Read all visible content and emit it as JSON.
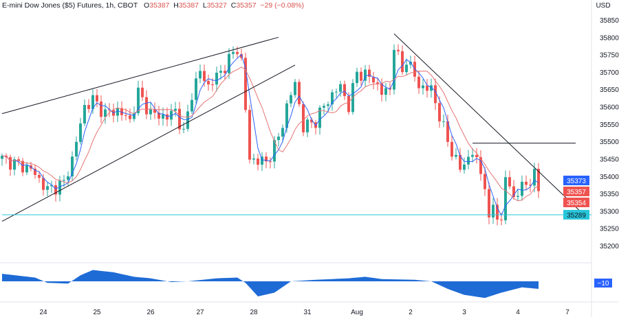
{
  "header": {
    "symbol": "E-mini Dow Jones ($5) Futures, 1h, CBOT",
    "o_label": "O",
    "o": "35387",
    "h_label": "H",
    "h": "35387",
    "l_label": "L",
    "l": "35327",
    "c_label": "C",
    "c": "35357",
    "change": "−29 (−0.08%)"
  },
  "currency": "USD",
  "colors": {
    "up": "#26a69a",
    "down": "#ef5350",
    "ma_fast": "#2962ff",
    "ma_slow": "#e57373",
    "support": "#26c6da",
    "osc": "#1e6bd6"
  },
  "chart_data": {
    "type": "candlestick",
    "title": "E-mini Dow Jones ($5) Futures, 1h, CBOT",
    "ylim": [
      35160,
      35900
    ],
    "y_ticks": [
      35200,
      35250,
      35300,
      35350,
      35400,
      35450,
      35500,
      35550,
      35600,
      35650,
      35700,
      35750,
      35800,
      35850
    ],
    "price_labels": [
      {
        "value": "35373",
        "color": "#2962ff"
      },
      {
        "value": "35357",
        "color": "#ef5350"
      },
      {
        "value": "35354",
        "color": "#ef5350"
      },
      {
        "value": "35289",
        "color": "#26c6da"
      }
    ],
    "x_labels": [
      "24",
      "25",
      "26",
      "27",
      "28",
      "31",
      "Aug",
      "2",
      "3",
      "4",
      "7"
    ],
    "x_label_bars": [
      10,
      23,
      36,
      48,
      61,
      74,
      86,
      99,
      112,
      125,
      137
    ],
    "waypoints": [
      [
        0,
        35450
      ],
      [
        7,
        35420
      ],
      [
        11,
        35360
      ],
      [
        15,
        35380
      ],
      [
        17,
        35450
      ],
      [
        20,
        35600
      ],
      [
        22,
        35620
      ],
      [
        25,
        35580
      ],
      [
        28,
        35590
      ],
      [
        31,
        35560
      ],
      [
        33,
        35640
      ],
      [
        36,
        35580
      ],
      [
        40,
        35570
      ],
      [
        42,
        35590
      ],
      [
        44,
        35520
      ],
      [
        46,
        35640
      ],
      [
        48,
        35700
      ],
      [
        50,
        35660
      ],
      [
        53,
        35700
      ],
      [
        57,
        35770
      ],
      [
        58,
        35730
      ],
      [
        60,
        35450
      ],
      [
        64,
        35440
      ],
      [
        67,
        35510
      ],
      [
        69,
        35600
      ],
      [
        71,
        35670
      ],
      [
        73,
        35540
      ],
      [
        76,
        35560
      ],
      [
        79,
        35620
      ],
      [
        82,
        35660
      ],
      [
        84,
        35600
      ],
      [
        86,
        35700
      ],
      [
        90,
        35680
      ],
      [
        92,
        35640
      ],
      [
        94,
        35650
      ],
      [
        95,
        35780
      ],
      [
        97,
        35700
      ],
      [
        98,
        35740
      ],
      [
        101,
        35660
      ],
      [
        104,
        35650
      ],
      [
        108,
        35500
      ],
      [
        111,
        35420
      ],
      [
        114,
        35470
      ],
      [
        117,
        35380
      ],
      [
        118,
        35260
      ],
      [
        119,
        35320
      ],
      [
        121,
        35260
      ],
      [
        122,
        35400
      ],
      [
        124,
        35340
      ],
      [
        127,
        35380
      ],
      [
        129,
        35400
      ],
      [
        130,
        35357
      ]
    ],
    "trendlines": [
      {
        "name": "upper-channel",
        "from": [
          0,
          35580
        ],
        "to": [
          67,
          35800
        ]
      },
      {
        "name": "lower-channel",
        "from": [
          0,
          35270
        ],
        "to": [
          71,
          35720
        ]
      },
      {
        "name": "descending",
        "from": [
          95,
          35810
        ],
        "to": [
          141,
          35289
        ]
      },
      {
        "name": "resistance",
        "from": [
          114,
          35495
        ],
        "to": [
          139,
          35495
        ]
      },
      {
        "name": "support",
        "from": [
          0,
          35289
        ],
        "to": [
          150,
          35289
        ]
      }
    ],
    "oscillator": {
      "label": "−10",
      "waypoints": [
        [
          0,
          10
        ],
        [
          8,
          5
        ],
        [
          11,
          -2
        ],
        [
          16,
          -3
        ],
        [
          19,
          8
        ],
        [
          22,
          15
        ],
        [
          27,
          12
        ],
        [
          32,
          6
        ],
        [
          36,
          4
        ],
        [
          41,
          -1
        ],
        [
          45,
          0
        ],
        [
          52,
          4
        ],
        [
          57,
          5
        ],
        [
          59,
          -2
        ],
        [
          62,
          -20
        ],
        [
          66,
          -15
        ],
        [
          70,
          0
        ],
        [
          76,
          2
        ],
        [
          84,
          4
        ],
        [
          88,
          6
        ],
        [
          92,
          3
        ],
        [
          100,
          2
        ],
        [
          104,
          0
        ],
        [
          108,
          -10
        ],
        [
          112,
          -18
        ],
        [
          117,
          -22
        ],
        [
          121,
          -15
        ],
        [
          126,
          -8
        ],
        [
          130,
          -10
        ]
      ]
    }
  }
}
